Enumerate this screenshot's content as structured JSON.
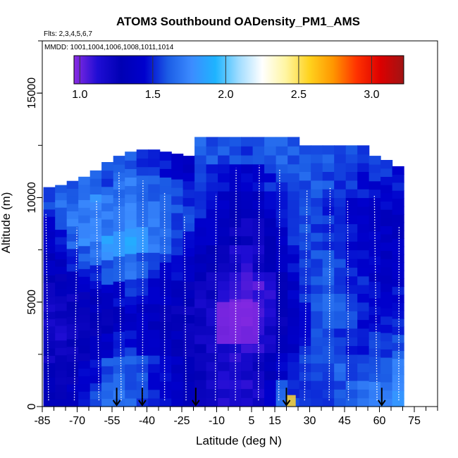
{
  "chart_data": {
    "type": "heatmap",
    "title": "ATOM3 Southbound OADensity_PM1_AMS",
    "flights_note": "Flts: 2,3,4,5,6,7",
    "dates_note": "MMDD: 1001,1004,1006,1008,1011,1014",
    "xlabel": "Latitude (deg N)",
    "ylabel": "Altitude (m)",
    "xlim": [
      -85,
      85
    ],
    "ylim": [
      0,
      17500
    ],
    "x_ticks": [
      -85,
      -70,
      -55,
      -40,
      -25,
      -10,
      5,
      15,
      30,
      45,
      60,
      75
    ],
    "x_tick_labels": [
      "-85",
      "-70",
      "-55",
      "-40",
      "-25",
      "-10",
      "5",
      "15",
      "30",
      "45",
      "60",
      "75"
    ],
    "y_ticks": [
      0,
      5000,
      10000,
      15000
    ],
    "y_tick_labels": [
      "0",
      "5000",
      "10000",
      "15000"
    ],
    "colorbar": {
      "range": [
        0.96,
        3.22
      ],
      "ticks": [
        1.0,
        1.5,
        2.0,
        2.5,
        3.0
      ],
      "tick_labels": [
        "1.0",
        "1.5",
        "2.0",
        "2.5",
        "3.0"
      ],
      "colors": [
        "#8a2be2",
        "#1f0dd4",
        "#0000b4",
        "#0000cd",
        "#1c5ee6",
        "#3c8cff",
        "#1eb4ff",
        "#a0dcff",
        "#ffffff",
        "#fff5a0",
        "#ffd21e",
        "#ff9600",
        "#ff3200",
        "#dc0000",
        "#a01414"
      ]
    },
    "ground_arrows_lat": [
      -53,
      -42,
      -19,
      20,
      61
    ],
    "columns": [
      {
        "lat": -82,
        "top": 10500,
        "values": [
          1.32,
          1.28,
          1.22,
          1.18,
          1.2,
          1.25,
          1.35,
          1.4,
          1.45,
          1.55
        ]
      },
      {
        "lat": -77,
        "top": 10600,
        "values": [
          1.3,
          1.26,
          1.2,
          1.16,
          1.22,
          1.3,
          1.38,
          1.48,
          1.6,
          1.65
        ]
      },
      {
        "lat": -72,
        "top": 10800,
        "values": [
          1.38,
          1.3,
          1.24,
          1.2,
          1.25,
          1.35,
          1.5,
          1.62,
          1.7,
          1.58
        ]
      },
      {
        "lat": -67,
        "top": 11000,
        "values": [
          1.45,
          1.4,
          1.28,
          1.22,
          1.3,
          1.45,
          1.6,
          1.75,
          1.72,
          1.62
        ]
      },
      {
        "lat": -62,
        "top": 11300,
        "values": [
          1.55,
          1.48,
          1.35,
          1.25,
          1.35,
          1.5,
          1.68,
          1.78,
          1.75,
          1.6
        ]
      },
      {
        "lat": -57,
        "top": 11700,
        "values": [
          1.65,
          1.58,
          1.42,
          1.3,
          1.4,
          1.58,
          1.82,
          1.7,
          1.68,
          1.55
        ]
      },
      {
        "lat": -52,
        "top": 12000,
        "values": [
          1.68,
          1.62,
          1.48,
          1.35,
          1.45,
          1.62,
          1.8,
          1.72,
          1.65,
          1.6
        ]
      },
      {
        "lat": -47,
        "top": 12200,
        "values": [
          1.62,
          1.58,
          1.5,
          1.4,
          1.5,
          1.65,
          1.85,
          1.75,
          1.7,
          1.62
        ]
      },
      {
        "lat": -42,
        "top": 12300,
        "values": [
          1.55,
          1.55,
          1.45,
          1.38,
          1.48,
          1.6,
          1.78,
          1.7,
          1.65,
          1.55
        ]
      },
      {
        "lat": -37,
        "top": 12300,
        "values": [
          1.48,
          1.5,
          1.4,
          1.35,
          1.42,
          1.55,
          1.7,
          1.68,
          1.62,
          1.5
        ]
      },
      {
        "lat": -32,
        "top": 12200,
        "values": [
          1.42,
          1.45,
          1.35,
          1.3,
          1.38,
          1.48,
          1.62,
          1.6,
          1.58,
          1.48
        ]
      },
      {
        "lat": -27,
        "top": 12100,
        "values": [
          1.38,
          1.4,
          1.32,
          1.28,
          1.32,
          1.42,
          1.55,
          1.58,
          1.55,
          1.45
        ]
      },
      {
        "lat": -22,
        "top": 12000,
        "values": [
          1.32,
          1.35,
          1.28,
          1.25,
          1.3,
          1.38,
          1.5,
          1.55,
          1.52,
          1.4
        ]
      },
      {
        "lat": -17,
        "top": 12900,
        "values": [
          1.25,
          1.28,
          1.22,
          1.2,
          1.25,
          1.32,
          1.45,
          1.52,
          1.55,
          1.62
        ]
      },
      {
        "lat": -12,
        "top": 12900,
        "values": [
          1.18,
          1.22,
          1.18,
          1.16,
          1.2,
          1.28,
          1.38,
          1.45,
          1.52,
          1.6
        ]
      },
      {
        "lat": -7,
        "top": 12900,
        "values": [
          1.15,
          1.18,
          1.15,
          1.12,
          1.15,
          1.22,
          1.3,
          1.4,
          1.48,
          1.58
        ]
      },
      {
        "lat": -2,
        "top": 12900,
        "values": [
          1.12,
          1.15,
          1.12,
          1.05,
          1.1,
          1.18,
          1.25,
          1.35,
          1.45,
          1.55
        ]
      },
      {
        "lat": 3,
        "top": 12900,
        "values": [
          1.15,
          1.18,
          1.1,
          1.02,
          1.05,
          1.15,
          1.22,
          1.32,
          1.42,
          1.55
        ]
      },
      {
        "lat": 8,
        "top": 12900,
        "values": [
          1.18,
          1.2,
          1.12,
          1.04,
          1.08,
          1.18,
          1.25,
          1.35,
          1.45,
          1.58
        ]
      },
      {
        "lat": 13,
        "top": 12900,
        "values": [
          1.45,
          1.3,
          1.2,
          1.12,
          1.15,
          1.25,
          1.32,
          1.4,
          1.5,
          1.62
        ]
      },
      {
        "lat": 18,
        "top": 12900,
        "values": [
          1.62,
          1.4,
          1.3,
          1.25,
          1.28,
          1.35,
          1.42,
          1.48,
          1.55,
          1.62
        ]
      },
      {
        "lat": 23,
        "top": 12900,
        "values": [
          1.55,
          1.48,
          1.4,
          1.38,
          1.4,
          1.45,
          1.5,
          1.55,
          1.58,
          1.6
        ]
      },
      {
        "lat": 28,
        "top": 12500,
        "values": [
          1.5,
          1.52,
          1.48,
          1.5,
          1.52,
          1.55,
          1.55,
          1.58,
          1.6,
          1.58
        ]
      },
      {
        "lat": 33,
        "top": 12500,
        "values": [
          1.48,
          1.55,
          1.55,
          1.62,
          1.6,
          1.58,
          1.55,
          1.58,
          1.62,
          1.6
        ]
      },
      {
        "lat": 38,
        "top": 12500,
        "values": [
          1.52,
          1.58,
          1.58,
          1.65,
          1.62,
          1.6,
          1.55,
          1.52,
          1.58,
          1.62
        ]
      },
      {
        "lat": 43,
        "top": 12500,
        "values": [
          1.58,
          1.62,
          1.55,
          1.6,
          1.58,
          1.55,
          1.5,
          1.48,
          1.55,
          1.6
        ]
      },
      {
        "lat": 48,
        "top": 12500,
        "values": [
          1.62,
          1.6,
          1.52,
          1.55,
          1.52,
          1.5,
          1.45,
          1.45,
          1.52,
          1.58
        ]
      },
      {
        "lat": 53,
        "top": 12500,
        "values": [
          1.65,
          1.58,
          1.5,
          1.48,
          1.48,
          1.45,
          1.42,
          1.42,
          1.48,
          1.55
        ]
      },
      {
        "lat": 58,
        "top": 12000,
        "values": [
          1.68,
          1.62,
          1.52,
          1.45,
          1.45,
          1.42,
          1.4,
          1.4,
          1.45,
          1.52
        ]
      },
      {
        "lat": 63,
        "top": 11800,
        "values": [
          1.72,
          1.65,
          1.55,
          1.48,
          1.42,
          1.4,
          1.38,
          1.38,
          1.42,
          1.5
        ]
      },
      {
        "lat": 68,
        "top": 11500,
        "values": [
          1.75,
          1.7,
          1.6,
          1.52,
          1.45,
          1.42,
          1.38,
          1.35,
          1.4,
          1.48
        ]
      }
    ],
    "features": [
      {
        "lat_min": -10,
        "lat_max": 8,
        "alt_min": 3000,
        "alt_max": 5000,
        "value": 0.97
      },
      {
        "lat_min": 20,
        "lat_max": 24,
        "alt_min": 0,
        "alt_max": 550,
        "value": 2.55
      }
    ]
  }
}
